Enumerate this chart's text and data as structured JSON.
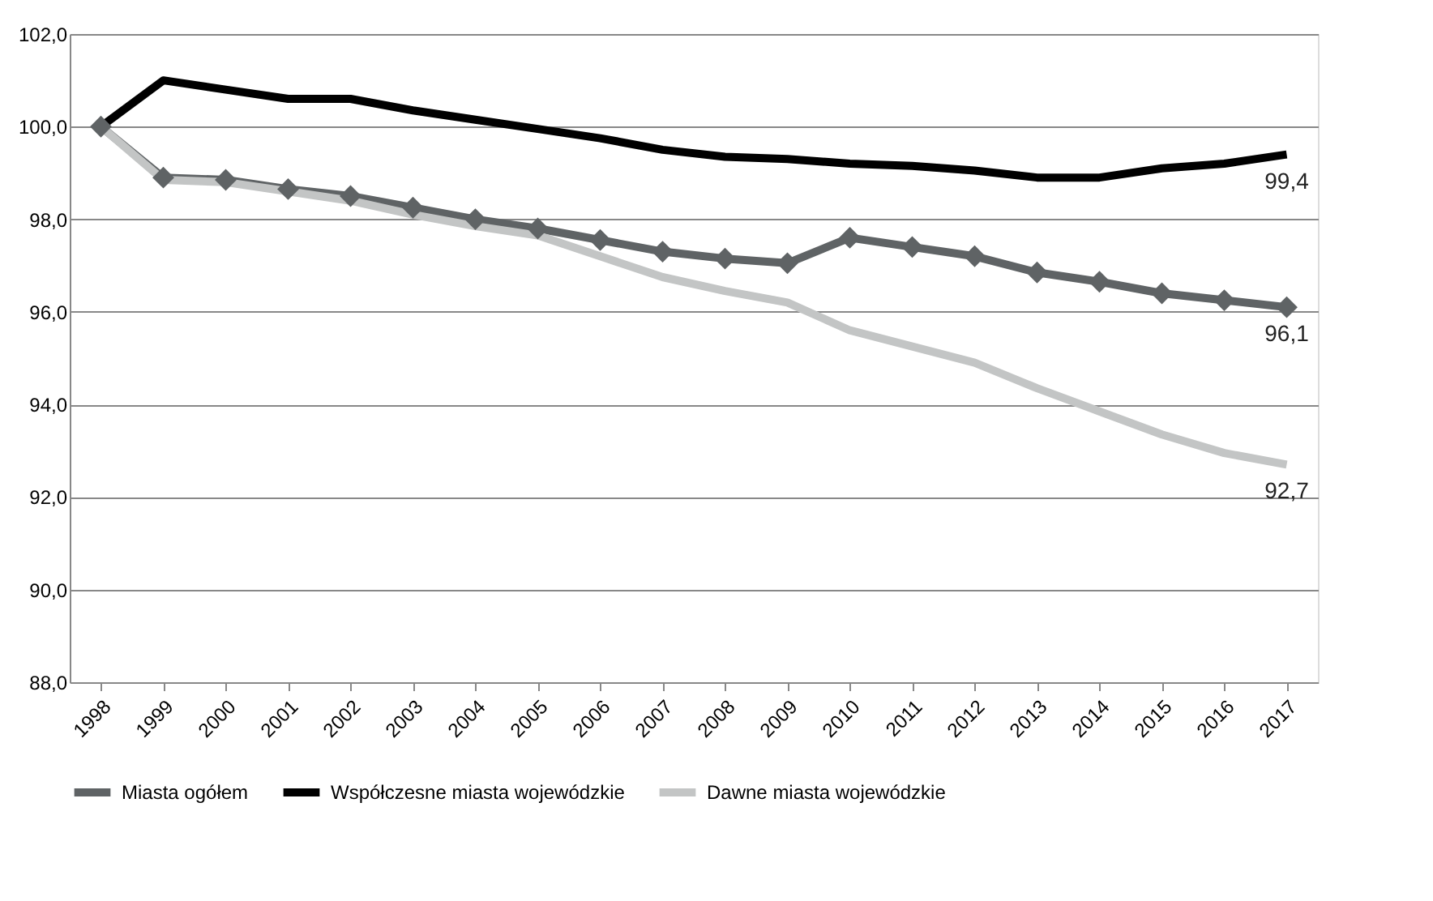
{
  "chart_data": {
    "type": "line",
    "categories": [
      "1998",
      "1999",
      "2000",
      "2001",
      "2002",
      "2003",
      "2004",
      "2005",
      "2006",
      "2007",
      "2008",
      "2009",
      "2010",
      "2011",
      "2012",
      "2013",
      "2014",
      "2015",
      "2016",
      "2017"
    ],
    "series": [
      {
        "name": "Miasta ogółem",
        "color": "#5f6365",
        "marker": "diamond",
        "values": [
          100.0,
          98.9,
          98.85,
          98.65,
          98.5,
          98.25,
          98.0,
          97.8,
          97.55,
          97.3,
          97.15,
          97.05,
          97.6,
          97.4,
          97.2,
          96.85,
          96.65,
          96.4,
          96.25,
          96.1
        ],
        "value_labels": [
          null,
          null,
          null,
          null,
          null,
          null,
          null,
          null,
          null,
          null,
          null,
          null,
          null,
          null,
          null,
          null,
          null,
          null,
          null,
          "96,1"
        ]
      },
      {
        "name": "Współczesne miasta wojewódzkie",
        "color": "#000000",
        "marker": "none",
        "values": [
          100.0,
          101.0,
          100.8,
          100.6,
          100.6,
          100.35,
          100.15,
          99.95,
          99.75,
          99.5,
          99.35,
          99.3,
          99.2,
          99.15,
          99.05,
          98.9,
          98.9,
          99.1,
          99.2,
          99.4
        ],
        "value_labels": [
          null,
          null,
          null,
          null,
          null,
          null,
          null,
          null,
          null,
          null,
          null,
          null,
          null,
          null,
          null,
          null,
          null,
          null,
          null,
          "99,4"
        ]
      },
      {
        "name": "Dawne miasta wojewódzkie",
        "color": "#c3c5c5",
        "marker": "none",
        "values": [
          100.0,
          98.85,
          98.8,
          98.6,
          98.4,
          98.1,
          97.85,
          97.65,
          97.2,
          96.75,
          96.45,
          96.2,
          95.6,
          95.25,
          94.9,
          94.35,
          93.85,
          93.35,
          92.95,
          92.7
        ],
        "value_labels": [
          null,
          null,
          null,
          null,
          null,
          null,
          null,
          null,
          null,
          null,
          null,
          null,
          null,
          null,
          null,
          null,
          null,
          null,
          null,
          "92,7"
        ]
      }
    ],
    "ylim": [
      88.0,
      102.0
    ],
    "yticks": [
      {
        "value": 88,
        "label": "88,0"
      },
      {
        "value": 90,
        "label": "90,0"
      },
      {
        "value": 92,
        "label": "92,0"
      },
      {
        "value": 94,
        "label": "94,0"
      },
      {
        "value": 96,
        "label": "96,0"
      },
      {
        "value": 98,
        "label": "98,0"
      },
      {
        "value": 100,
        "label": "100,0"
      },
      {
        "value": 102,
        "label": "102,0"
      }
    ],
    "grid": "y",
    "legend": "bottom",
    "line_style": "solid"
  }
}
